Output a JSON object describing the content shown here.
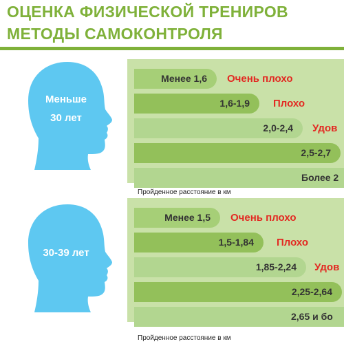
{
  "header": {
    "title_line1": "ОЦЕНКА ФИЗИЧЕСКОЙ ТРЕНИРОВ",
    "title_line2": "МЕТОДЫ САМОКОНТРОЛЯ"
  },
  "colors": {
    "accent_green": "#7fb13a",
    "head_blue": "#5ec8f1",
    "rating_red": "#e32922"
  },
  "groups": [
    {
      "age_label": [
        "Меньше",
        "30 лет"
      ],
      "rows": [
        {
          "range": "Менее 1,6",
          "rating": "Очень плохо"
        },
        {
          "range": "1,6-1,9",
          "rating": "Плохо"
        },
        {
          "range": "2,0-2,4",
          "rating": "Удов"
        },
        {
          "range": "2,5-2,7",
          "rating": ""
        },
        {
          "range": "Более 2",
          "rating": ""
        }
      ],
      "footnote": "Пройденное расстояние в км"
    },
    {
      "age_label": [
        "30-39 лет"
      ],
      "rows": [
        {
          "range": "Менее 1,5",
          "rating": "Очень плохо"
        },
        {
          "range": "1,5-1,84",
          "rating": "Плохо"
        },
        {
          "range": "1,85-2,24",
          "rating": "Удов"
        },
        {
          "range": "2,25-2,64",
          "rating": ""
        },
        {
          "range": "2,65 и бо",
          "rating": ""
        }
      ],
      "footnote": "Пройденное расстояние в км"
    }
  ]
}
